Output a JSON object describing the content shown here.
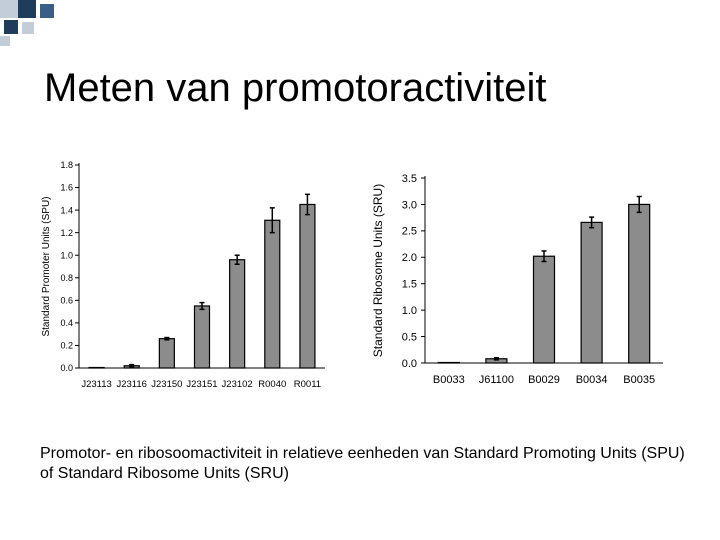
{
  "slide": {
    "title": "Meten van promotoractiviteit",
    "caption": "Promotor- en ribosoomactiviteit  in relatieve eenheden van Standard Promoting Units (SPU) of Standard Ribosome Units (SRU)"
  },
  "colors": {
    "deco_dark": "#1f3c5a",
    "deco_mid": "#3a5f86",
    "deco_light": "#c3cdd8",
    "bar_fill": "#8c8c8c",
    "bar_stroke": "#000000"
  },
  "chart_data": [
    {
      "type": "bar",
      "title": "",
      "xlabel": "",
      "ylabel": "Standard Promoter Units (SPU)",
      "categories": [
        "J23113",
        "J23116",
        "J23150",
        "J23151",
        "J23102",
        "R0040",
        "R0011"
      ],
      "values": [
        0.0,
        0.02,
        0.26,
        0.55,
        0.96,
        1.31,
        1.45
      ],
      "errors": [
        0.0,
        0.01,
        0.01,
        0.03,
        0.04,
        0.11,
        0.09
      ],
      "ylim": [
        0,
        1.8
      ],
      "yticks": [
        "0.0",
        "0.2",
        "0.4",
        "0.6",
        "0.8",
        "1.0",
        "1.2",
        "1.4",
        "1.6",
        "1.8"
      ],
      "grid": false
    },
    {
      "type": "bar",
      "title": "",
      "xlabel": "",
      "ylabel": "Standard Ribosome Units (SRU)",
      "categories": [
        "B0033",
        "J61100",
        "B0029",
        "B0034",
        "B0035"
      ],
      "values": [
        0.0,
        0.08,
        2.02,
        2.66,
        3.0
      ],
      "errors": [
        0.0,
        0.02,
        0.1,
        0.1,
        0.15
      ],
      "ylim": [
        0,
        3.5
      ],
      "yticks": [
        "0.0",
        "0.5",
        "1.0",
        "1.5",
        "2.0",
        "2.5",
        "3.0",
        "3.5"
      ],
      "grid": false
    }
  ]
}
